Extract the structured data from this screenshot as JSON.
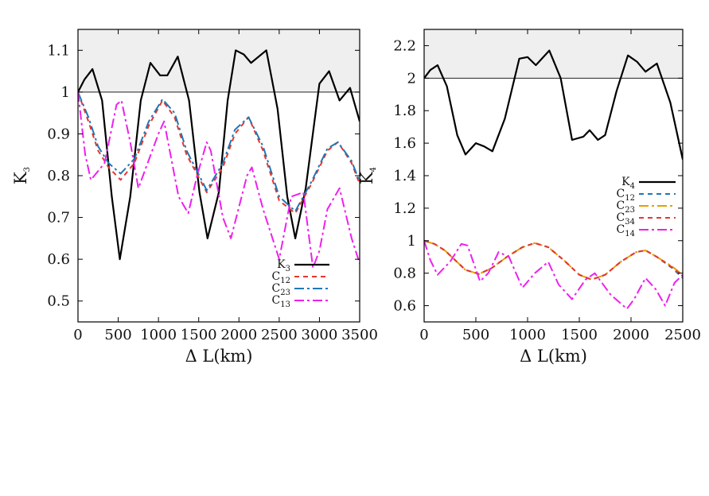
{
  "chart_data": [
    {
      "id": "left",
      "type": "line",
      "xlabel": "Δ L(km)",
      "ylabel": "K",
      "ylabel_sub": "3",
      "xlim": [
        0,
        3500
      ],
      "ylim": [
        0.45,
        1.15
      ],
      "xticks": [
        "0",
        "500",
        "1000",
        "1500",
        "2000",
        "2500",
        "3000",
        "3500"
      ],
      "yticks": [
        "0.5",
        "0.6",
        "0.7",
        "0.8",
        "0.9",
        "1",
        "1.1"
      ],
      "shaded_region": {
        "from": 1.0,
        "to": 1.15
      },
      "reference_line": 1.0,
      "legend_position": "bottom-right",
      "series": [
        {
          "name": "K",
          "sub": "3",
          "color": "#000000",
          "dash": "solid",
          "x": [
            0,
            80,
            180,
            300,
            420,
            520,
            650,
            780,
            900,
            1020,
            1110,
            1240,
            1380,
            1510,
            1610,
            1750,
            1860,
            1960,
            2060,
            2150,
            2340,
            2480,
            2600,
            2700,
            2830,
            3000,
            3120,
            3250,
            3380,
            3500
          ],
          "y": [
            1.0,
            1.03,
            1.055,
            0.98,
            0.75,
            0.6,
            0.75,
            0.98,
            1.07,
            1.04,
            1.04,
            1.085,
            0.98,
            0.76,
            0.65,
            0.76,
            0.98,
            1.1,
            1.09,
            1.07,
            1.1,
            0.96,
            0.75,
            0.65,
            0.77,
            1.02,
            1.05,
            0.98,
            1.01,
            0.93
          ]
        },
        {
          "name": "C",
          "sub": "12",
          "color": "#e8352e",
          "dash": "dash",
          "x": [
            0,
            130,
            250,
            380,
            530,
            700,
            880,
            1050,
            1200,
            1350,
            1600,
            1800,
            1950,
            2120,
            2300,
            2500,
            2700,
            2900,
            3100,
            3230,
            3400,
            3500
          ],
          "y": [
            1.0,
            0.93,
            0.86,
            0.82,
            0.79,
            0.83,
            0.92,
            0.98,
            0.94,
            0.85,
            0.76,
            0.82,
            0.9,
            0.94,
            0.86,
            0.74,
            0.71,
            0.78,
            0.86,
            0.88,
            0.83,
            0.78
          ]
        },
        {
          "name": "C",
          "sub": "23",
          "color": "#1f77b4",
          "dash": "dashdot",
          "x": [
            0,
            130,
            250,
            380,
            530,
            700,
            880,
            1050,
            1200,
            1350,
            1600,
            1800,
            1950,
            2120,
            2300,
            2500,
            2700,
            2900,
            3100,
            3230,
            3400,
            3500
          ],
          "y": [
            1.0,
            0.94,
            0.87,
            0.83,
            0.805,
            0.84,
            0.93,
            0.983,
            0.95,
            0.86,
            0.765,
            0.83,
            0.91,
            0.94,
            0.87,
            0.75,
            0.715,
            0.785,
            0.865,
            0.88,
            0.835,
            0.785
          ]
        },
        {
          "name": "C",
          "sub": "13",
          "color": "#ee20ee",
          "dash": "dashdot",
          "x": [
            0,
            90,
            160,
            330,
            480,
            540,
            650,
            750,
            1000,
            1070,
            1250,
            1370,
            1480,
            1600,
            1650,
            1800,
            1900,
            2100,
            2160,
            2300,
            2500,
            2650,
            2800,
            2920,
            3000,
            3100,
            3250,
            3400,
            3500
          ],
          "y": [
            1.0,
            0.85,
            0.79,
            0.83,
            0.97,
            0.98,
            0.88,
            0.77,
            0.9,
            0.93,
            0.75,
            0.71,
            0.8,
            0.88,
            0.86,
            0.7,
            0.65,
            0.8,
            0.82,
            0.72,
            0.6,
            0.75,
            0.76,
            0.58,
            0.62,
            0.72,
            0.77,
            0.65,
            0.59
          ]
        }
      ]
    },
    {
      "id": "right",
      "type": "line",
      "xlabel": "Δ L(km)",
      "ylabel": "K",
      "ylabel_sub": "4",
      "xlim": [
        0,
        2500
      ],
      "ylim": [
        0.5,
        2.3
      ],
      "xticks": [
        "0",
        "500",
        "1000",
        "1500",
        "2000",
        "2500"
      ],
      "yticks": [
        "0.6",
        "0.8",
        "1",
        "1.2",
        "1.4",
        "1.6",
        "1.8",
        "2",
        "2.2"
      ],
      "shaded_region": {
        "from": 2.0,
        "to": 2.3
      },
      "reference_line": 2.0,
      "legend_position": "center-right",
      "series": [
        {
          "name": "K",
          "sub": "4",
          "color": "#000000",
          "dash": "solid",
          "x": [
            0,
            60,
            130,
            220,
            320,
            400,
            500,
            580,
            660,
            780,
            920,
            1000,
            1080,
            1210,
            1320,
            1430,
            1540,
            1600,
            1680,
            1750,
            1860,
            1970,
            2060,
            2140,
            2250,
            2380,
            2500
          ],
          "y": [
            2.0,
            2.05,
            2.08,
            1.95,
            1.65,
            1.53,
            1.6,
            1.58,
            1.55,
            1.75,
            2.12,
            2.13,
            2.08,
            2.17,
            2.0,
            1.62,
            1.64,
            1.68,
            1.62,
            1.65,
            1.92,
            2.14,
            2.1,
            2.04,
            2.09,
            1.85,
            1.5
          ]
        },
        {
          "name": "C",
          "sub": "12",
          "color": "#1f77b4",
          "dash": "dash",
          "x": [
            0,
            100,
            200,
            300,
            400,
            530,
            650,
            800,
            950,
            1070,
            1200,
            1350,
            1500,
            1620,
            1750,
            1900,
            2050,
            2140,
            2250,
            2400,
            2500
          ],
          "y": [
            1.0,
            0.98,
            0.94,
            0.88,
            0.82,
            0.795,
            0.83,
            0.9,
            0.96,
            0.985,
            0.96,
            0.88,
            0.79,
            0.76,
            0.79,
            0.87,
            0.93,
            0.94,
            0.9,
            0.83,
            0.77
          ]
        },
        {
          "name": "C",
          "sub": "23",
          "color": "#e69f00",
          "dash": "dashdot",
          "x": [
            0,
            100,
            200,
            300,
            400,
            530,
            650,
            800,
            950,
            1070,
            1200,
            1350,
            1500,
            1620,
            1750,
            1900,
            2050,
            2140,
            2250,
            2400,
            2500
          ],
          "y": [
            1.0,
            0.98,
            0.94,
            0.88,
            0.82,
            0.795,
            0.83,
            0.9,
            0.96,
            0.985,
            0.96,
            0.88,
            0.79,
            0.76,
            0.79,
            0.87,
            0.93,
            0.94,
            0.9,
            0.84,
            0.79
          ]
        },
        {
          "name": "C",
          "sub": "34",
          "color": "#e8352e",
          "dash": "dash",
          "x": [
            0,
            100,
            200,
            300,
            400,
            530,
            650,
            800,
            950,
            1070,
            1200,
            1350,
            1500,
            1620,
            1750,
            1900,
            2050,
            2140,
            2250,
            2400,
            2500
          ],
          "y": [
            1.0,
            0.98,
            0.94,
            0.88,
            0.82,
            0.795,
            0.83,
            0.9,
            0.96,
            0.985,
            0.96,
            0.88,
            0.79,
            0.76,
            0.79,
            0.87,
            0.93,
            0.94,
            0.9,
            0.835,
            0.78
          ]
        },
        {
          "name": "C",
          "sub": "14",
          "color": "#ee20ee",
          "dash": "dashdot",
          "x": [
            0,
            60,
            130,
            250,
            360,
            420,
            540,
            620,
            720,
            820,
            950,
            1070,
            1200,
            1300,
            1430,
            1560,
            1650,
            1800,
            1960,
            2030,
            2140,
            2240,
            2330,
            2420,
            2500
          ],
          "y": [
            1.0,
            0.88,
            0.79,
            0.87,
            0.98,
            0.97,
            0.75,
            0.8,
            0.93,
            0.9,
            0.71,
            0.8,
            0.87,
            0.73,
            0.64,
            0.76,
            0.8,
            0.67,
            0.58,
            0.64,
            0.77,
            0.7,
            0.6,
            0.74,
            0.79
          ]
        }
      ]
    }
  ]
}
